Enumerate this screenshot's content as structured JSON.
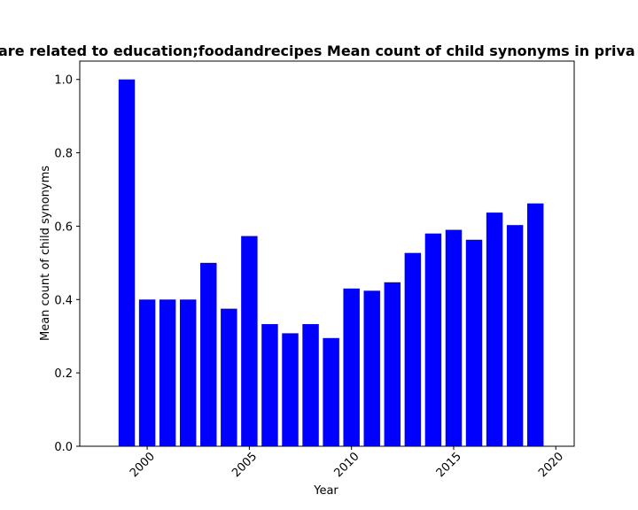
{
  "chart_data": {
    "type": "bar",
    "title": "are related to education;foodandrecipes Mean count of child synonyms in priva",
    "xlabel": "Year",
    "ylabel": "Mean count of child synonyms",
    "bar_color": "#0000ff",
    "xlim": [
      1996.7,
      2020.9
    ],
    "ylim": [
      0,
      1.05
    ],
    "xticks": [
      2000,
      2005,
      2010,
      2015,
      2020
    ],
    "xtick_labels": [
      "2000",
      "2005",
      "2010",
      "2015",
      "2020"
    ],
    "yticks": [
      0.0,
      0.2,
      0.4,
      0.6,
      0.8,
      1.0
    ],
    "ytick_labels": [
      "0.0",
      "0.2",
      "0.4",
      "0.6",
      "0.8",
      "1.0"
    ],
    "x": [
      1999,
      2000,
      2001,
      2002,
      2003,
      2004,
      2005,
      2006,
      2007,
      2008,
      2009,
      2010,
      2011,
      2012,
      2013,
      2014,
      2015,
      2016,
      2017,
      2018,
      2019
    ],
    "values": [
      1.0,
      0.4,
      0.4,
      0.4,
      0.5,
      0.375,
      0.573,
      0.333,
      0.308,
      0.333,
      0.295,
      0.43,
      0.424,
      0.447,
      0.527,
      0.58,
      0.59,
      0.563,
      0.637,
      0.603,
      0.662
    ],
    "grid": false,
    "legend": false
  }
}
